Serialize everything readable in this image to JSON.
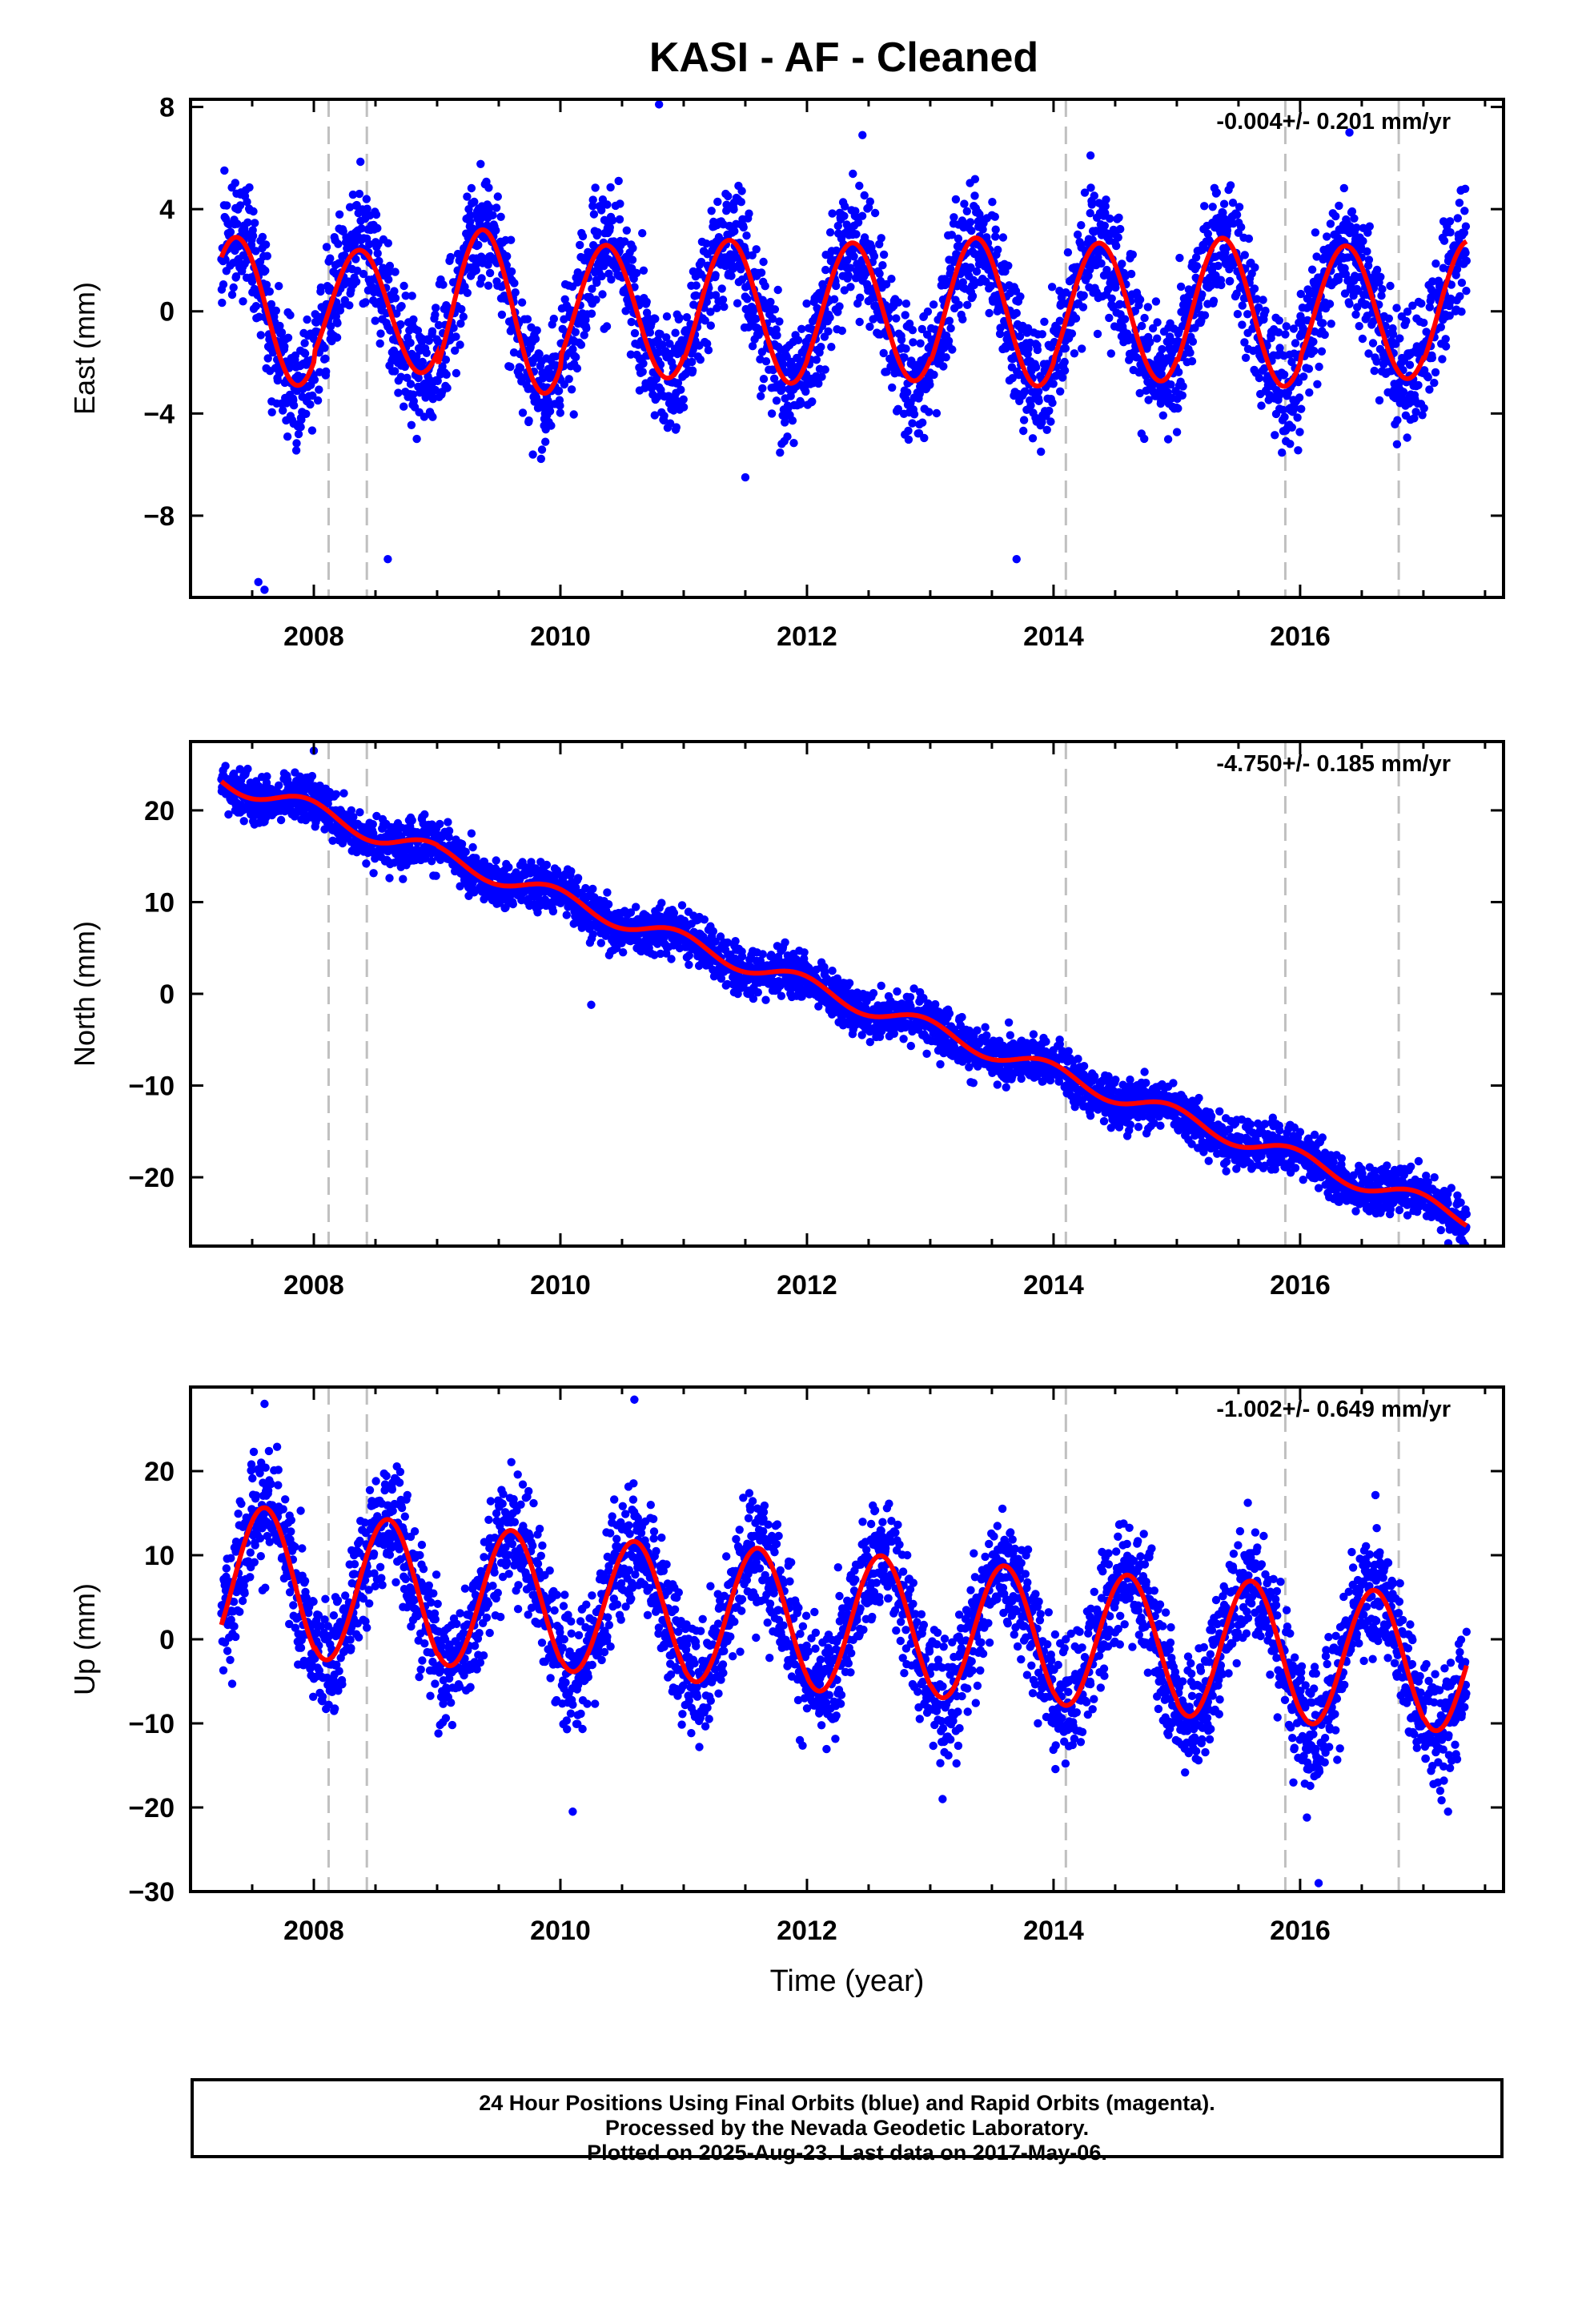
{
  "title": "KASI  - AF - Cleaned",
  "footer": {
    "line1": "24 Hour Positions Using Final Orbits (blue) and Rapid Orbits (magenta).",
    "line2": "Processed by the Nevada Geodetic Laboratory.",
    "line3": "Plotted on 2025-Aug-23. Last data on 2017-May-06."
  },
  "colors": {
    "points": "#0000ff",
    "model": "#ff0000",
    "break_lines": "#c0c0c0",
    "axes": "#000000"
  },
  "chart_data": [
    {
      "type": "scatter",
      "ylabel": "East (mm)",
      "xlabel": "",
      "rate_label": "-0.004+/- 0.201 mm/yr",
      "rate_mm_per_yr": -0.004,
      "rate_sigma": 0.201,
      "xlim": [
        2007.0,
        2017.65
      ],
      "ylim": [
        -11.2,
        8.3
      ],
      "xticks": [
        2008,
        2010,
        2012,
        2014,
        2016
      ],
      "yticks": [
        8,
        4,
        0,
        -4,
        -8
      ],
      "ytick_labels": [
        "8",
        "4",
        "0",
        "−4",
        "−8"
      ],
      "break_lines": [
        2008.12,
        2008.43,
        2014.1,
        2015.88,
        2016.8
      ],
      "data_range": [
        2007.25,
        2017.35
      ],
      "model": {
        "offset": 0.0,
        "trend": -0.004,
        "amplitudes": [
          2.9,
          2.4,
          3.2,
          2.6,
          2.8,
          2.7,
          2.9,
          2.7,
          2.9,
          2.6,
          2.8
        ],
        "phase_peak": 0.37
      },
      "scatter_sd": 1.2,
      "outliers": [
        [
          2007.55,
          -10.6
        ],
        [
          2007.6,
          -10.9
        ],
        [
          2010.8,
          8.1
        ],
        [
          2012.45,
          6.9
        ],
        [
          2013.7,
          -9.7
        ],
        [
          2008.6,
          -9.7
        ],
        [
          2011.5,
          -6.5
        ],
        [
          2014.3,
          6.1
        ],
        [
          2016.4,
          7.0
        ]
      ]
    },
    {
      "type": "scatter",
      "ylabel": "North (mm)",
      "xlabel": "",
      "rate_label": "-4.750+/- 0.185 mm/yr",
      "rate_mm_per_yr": -4.75,
      "rate_sigma": 0.185,
      "xlim": [
        2007.0,
        2017.65
      ],
      "ylim": [
        -27.5,
        27.5
      ],
      "xticks": [
        2008,
        2010,
        2012,
        2014,
        2016
      ],
      "yticks": [
        20,
        10,
        0,
        -10,
        -20
      ],
      "ytick_labels": [
        "20",
        "10",
        "0",
        "−10",
        "−20"
      ],
      "break_lines": [
        2008.12,
        2008.43,
        2014.1,
        2015.88,
        2016.8
      ],
      "data_range": [
        2007.25,
        2017.35
      ],
      "model": {
        "offset": 23.5,
        "trend": -4.75,
        "amplitudes": [
          1.1,
          1.1,
          1.0,
          1.0,
          1.0,
          1.0,
          1.0,
          1.0,
          1.0,
          1.0,
          1.0
        ],
        "phase_peak": 0.95
      },
      "scatter_sd": 1.3,
      "outliers": [
        [
          2010.25,
          -1.2
        ],
        [
          2008.0,
          26.5
        ],
        [
          2014.05,
          -5.0
        ],
        [
          2017.3,
          -26.0
        ]
      ]
    },
    {
      "type": "scatter",
      "ylabel": "Up (mm)",
      "xlabel": "Time (year)",
      "rate_label": "-1.002+/- 0.649 mm/yr",
      "rate_mm_per_yr": -1.002,
      "rate_sigma": 0.649,
      "xlim": [
        2007.0,
        2017.65
      ],
      "ylim": [
        -30.0,
        30.0
      ],
      "xticks": [
        2008,
        2010,
        2012,
        2014,
        2016
      ],
      "yticks": [
        20,
        10,
        0,
        -10,
        -20,
        -30
      ],
      "ytick_labels": [
        "20",
        "10",
        "0",
        "−10",
        "−20",
        "−30"
      ],
      "break_lines": [
        2008.12,
        2008.43,
        2014.1,
        2015.88,
        2016.8
      ],
      "data_range": [
        2007.25,
        2017.35
      ],
      "model": {
        "offset": 7.0,
        "trend": -1.002,
        "amplitudes": [
          9.0,
          8.6,
          8.3,
          8.0,
          8.2,
          8.3,
          8.1,
          8.0,
          8.3,
          8.2,
          8.0
        ],
        "phase_peak": 0.6
      },
      "scatter_sd": 3.6,
      "outliers": [
        [
          2007.6,
          28.0
        ],
        [
          2010.6,
          28.5
        ],
        [
          2016.15,
          -29.0
        ],
        [
          2010.1,
          -20.5
        ],
        [
          2013.1,
          -19.0
        ],
        [
          2017.2,
          -20.5
        ]
      ]
    }
  ]
}
